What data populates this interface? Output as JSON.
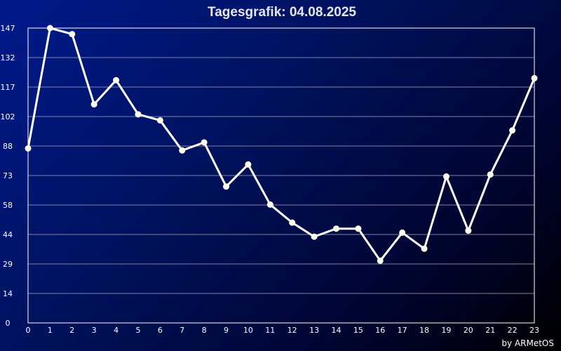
{
  "chart_data": {
    "type": "line",
    "title": "Tagesgrafik: 04.08.2025",
    "xlabel": "",
    "ylabel": "",
    "x": [
      0,
      1,
      2,
      3,
      4,
      5,
      6,
      7,
      8,
      9,
      10,
      11,
      12,
      13,
      14,
      15,
      16,
      17,
      18,
      19,
      20,
      21,
      22,
      23
    ],
    "x_ticks": [
      "0",
      "1",
      "2",
      "3",
      "4",
      "5",
      "6",
      "7",
      "8",
      "9",
      "10",
      "11",
      "12",
      "13",
      "14",
      "15",
      "16",
      "17",
      "18",
      "19",
      "20",
      "21",
      "22",
      "23"
    ],
    "y_ticks": [
      "0",
      "14",
      "29",
      "44",
      "58",
      "73",
      "88",
      "102",
      "117",
      "132",
      "147"
    ],
    "ylim": [
      0,
      147
    ],
    "xlim": [
      0,
      23
    ],
    "grid": true,
    "series": [
      {
        "values": [
          87,
          147,
          144,
          109,
          121,
          104,
          101,
          86,
          90,
          68,
          79,
          59,
          50,
          43,
          47,
          47,
          31,
          45,
          37,
          73,
          46,
          74,
          96,
          122
        ]
      }
    ],
    "colors": {
      "line": "#ffffff",
      "marker": "#ffffee",
      "grid": "#8080a8",
      "axis": "#ffffff"
    }
  },
  "credit": "by ARMetOS"
}
